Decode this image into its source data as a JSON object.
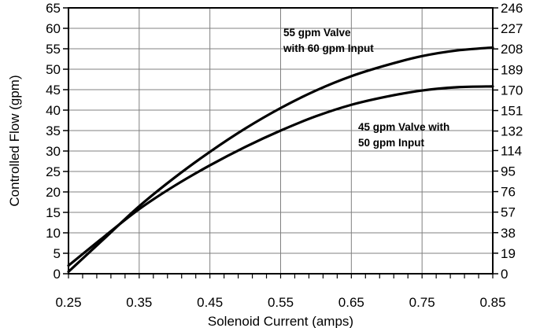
{
  "chart_data": {
    "type": "line",
    "title": "",
    "xlabel": "Solenoid Current (amps)",
    "ylabel": "Controlled Flow (gpm)",
    "xlim": [
      0.25,
      0.85
    ],
    "ylim": [
      0,
      65
    ],
    "y2lim": [
      0,
      246
    ],
    "grid": true,
    "legend": "none",
    "x_ticks": [
      "0.25",
      "0.35",
      "0.45",
      "0.55",
      "0.65",
      "0.75",
      "0.85"
    ],
    "y_ticks": [
      "0",
      "5",
      "10",
      "15",
      "20",
      "25",
      "30",
      "35",
      "40",
      "45",
      "50",
      "55",
      "60",
      "65"
    ],
    "y2_ticks": [
      "0",
      "19",
      "38",
      "57",
      "76",
      "95",
      "114",
      "132",
      "151",
      "170",
      "189",
      "208",
      "227",
      "246"
    ],
    "series": [
      {
        "label_line1": "55 gpm Valve",
        "label_line2": "with 60 gpm Input",
        "x": [
          0.25,
          0.3,
          0.35,
          0.4,
          0.45,
          0.5,
          0.55,
          0.6,
          0.65,
          0.7,
          0.75,
          0.8,
          0.85
        ],
        "y": [
          0.5,
          8.5,
          16.5,
          23.5,
          29.8,
          35.5,
          40.5,
          44.8,
          48.3,
          51.0,
          53.2,
          54.6,
          55.3
        ]
      },
      {
        "label_line1": "45 gpm Valve with",
        "label_line2": "50 gpm Input",
        "x": [
          0.25,
          0.3,
          0.35,
          0.4,
          0.45,
          0.5,
          0.55,
          0.6,
          0.65,
          0.7,
          0.75,
          0.8,
          0.85
        ],
        "y": [
          2.0,
          9.0,
          15.8,
          21.5,
          26.5,
          31.0,
          35.0,
          38.5,
          41.3,
          43.3,
          44.8,
          45.6,
          45.8
        ]
      }
    ]
  }
}
